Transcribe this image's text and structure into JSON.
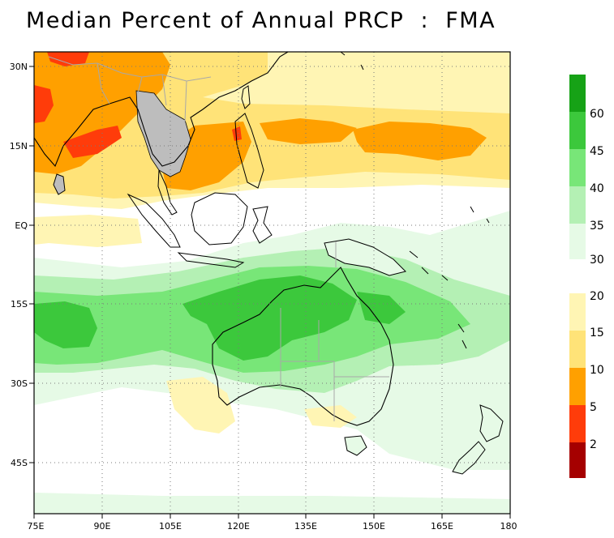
{
  "title": "Median Percent of Annual PRCP  :  FMA",
  "map": {
    "lon_range": [
      75,
      180
    ],
    "lat_range": [
      -52,
      35
    ],
    "lon_ticks": [
      "75E",
      "90E",
      "105E",
      "120E",
      "135E",
      "150E",
      "165E",
      "180"
    ],
    "lat_ticks": [
      "30N",
      "15N",
      "EQ",
      "15S",
      "30S",
      "45S"
    ],
    "colors": {
      "land_outline": "#000000",
      "border_gray": "#a8a8a8",
      "unshaded_land": "#bdbdbd",
      "grid_dots": "#7a7a7a"
    }
  },
  "legend": {
    "upper_labels": [
      "60",
      "45",
      "40",
      "35",
      "30"
    ],
    "lower_labels": [
      "20",
      "15",
      "10",
      "5",
      "2"
    ],
    "upper_colors": [
      "#16a216",
      "#3cc83c",
      "#78e678",
      "#b4f0b4",
      "#e6fae6"
    ],
    "lower_colors": [
      "#fff5b4",
      "#ffe378",
      "#ffa000",
      "#ff3c0a",
      "#a50000"
    ]
  }
}
